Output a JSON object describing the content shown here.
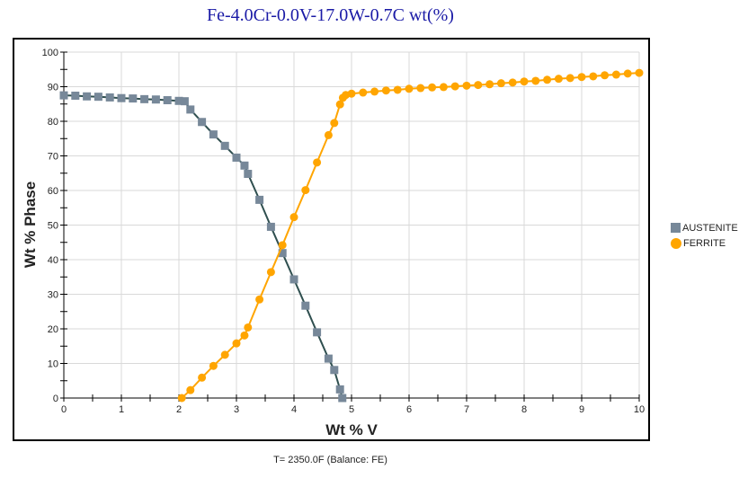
{
  "chart_data": {
    "type": "line",
    "title": "Fe-4.0Cr-0.0V-17.0W-0.7C wt(%)",
    "xlabel": "Wt % V",
    "ylabel": "Wt % Phase",
    "xlim": [
      0,
      10
    ],
    "ylim": [
      0,
      100
    ],
    "x_ticks": [
      "0",
      "1",
      "2",
      "3",
      "4",
      "5",
      "6",
      "7",
      "8",
      "9",
      "10"
    ],
    "y_ticks": [
      "0",
      "10",
      "20",
      "30",
      "40",
      "50",
      "60",
      "70",
      "80",
      "90",
      "100"
    ],
    "grid": true,
    "legend_position": "right",
    "footer": "T= 2350.0F (Balance: FE)",
    "series": [
      {
        "name": "AUSTENITE",
        "marker": "square",
        "color": "#778899",
        "line_color": "#2f4f4f",
        "x": [
          0,
          0.2,
          0.4,
          0.6,
          0.8,
          1.0,
          1.2,
          1.4,
          1.6,
          1.8,
          2.0,
          2.1,
          2.2,
          2.4,
          2.6,
          2.8,
          3.0,
          3.14,
          3.2,
          3.4,
          3.6,
          3.8,
          4.0,
          4.2,
          4.4,
          4.6,
          4.7,
          4.8,
          4.84
        ],
        "y": [
          87.5,
          87.4,
          87.2,
          87.1,
          86.9,
          86.7,
          86.6,
          86.4,
          86.3,
          86.1,
          85.9,
          85.8,
          83.4,
          79.8,
          76.2,
          72.9,
          69.5,
          67.2,
          64.8,
          57.3,
          49.5,
          41.9,
          34.3,
          26.7,
          19.0,
          11.4,
          8.1,
          2.5,
          0
        ]
      },
      {
        "name": "FERRITE",
        "marker": "circle",
        "color": "#ffa500",
        "line_color": "#ffa500",
        "x": [
          2.05,
          2.2,
          2.4,
          2.6,
          2.8,
          3.0,
          3.14,
          3.2,
          3.4,
          3.6,
          3.8,
          4.0,
          4.2,
          4.4,
          4.6,
          4.7,
          4.8,
          4.85,
          4.9,
          5.0,
          5.2,
          5.4,
          5.6,
          5.8,
          6.0,
          6.2,
          6.4,
          6.6,
          6.8,
          7.0,
          7.2,
          7.4,
          7.6,
          7.8,
          8.0,
          8.2,
          8.4,
          8.6,
          8.8,
          9.0,
          9.2,
          9.4,
          9.6,
          9.8,
          10.0
        ],
        "y": [
          0,
          2.3,
          5.9,
          9.3,
          12.5,
          15.8,
          18.1,
          20.4,
          28.5,
          36.4,
          44.2,
          52.3,
          60.1,
          68.1,
          76.0,
          79.5,
          84.9,
          86.8,
          87.6,
          88.0,
          88.3,
          88.6,
          88.9,
          89.1,
          89.4,
          89.6,
          89.8,
          89.9,
          90.1,
          90.3,
          90.5,
          90.7,
          91.0,
          91.2,
          91.5,
          91.7,
          92.0,
          92.3,
          92.5,
          92.8,
          93.0,
          93.3,
          93.5,
          93.8,
          94.0
        ]
      }
    ]
  }
}
